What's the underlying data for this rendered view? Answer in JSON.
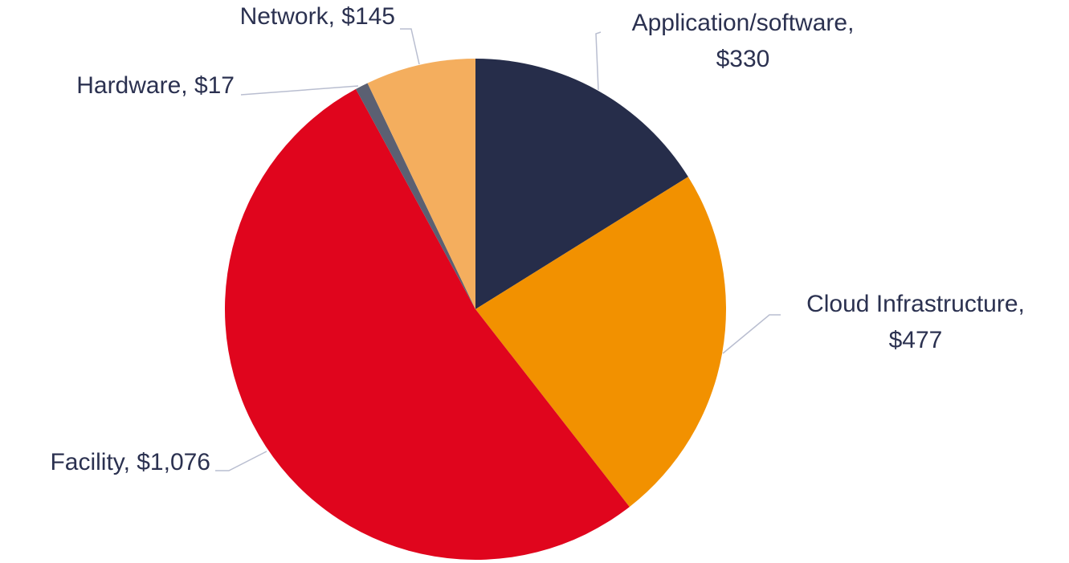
{
  "chart_data": {
    "type": "pie",
    "values": [
      330,
      477,
      1076,
      17,
      145
    ],
    "value_labels": [
      [
        "Application/software,",
        "$330"
      ],
      [
        "Cloud Infrastructure,",
        "$477"
      ],
      [
        "Facility, $1,076"
      ],
      [
        "Hardware, $17"
      ],
      [
        "Network, $145"
      ]
    ],
    "colors": [
      "#262d4a",
      "#f29100",
      "#e0051d",
      "#5b6072",
      "#f4ae5e"
    ]
  }
}
